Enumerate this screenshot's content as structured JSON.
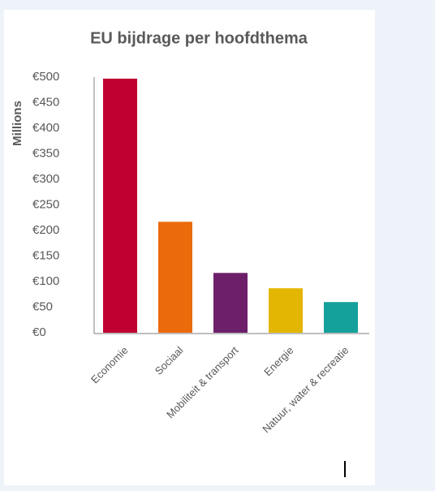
{
  "chart_data": {
    "type": "bar",
    "title": "EU bijdrage per hoofdthema",
    "y_label": "Millions",
    "categories": [
      "Economie",
      "Sociaal",
      "Mobiliteit & transport",
      "Energie",
      "Natuur, water & recreatie"
    ],
    "values": [
      497,
      217,
      117,
      87,
      60
    ],
    "colors": [
      "#c00031",
      "#ea6a0c",
      "#6e1f6a",
      "#e2b602",
      "#15a19b"
    ],
    "ylim": [
      0,
      500
    ],
    "yticks": [
      {
        "value": 0,
        "label": "€0"
      },
      {
        "value": 50,
        "label": "€50"
      },
      {
        "value": 100,
        "label": "€100"
      },
      {
        "value": 150,
        "label": "€150"
      },
      {
        "value": 200,
        "label": "€200"
      },
      {
        "value": 250,
        "label": "€250"
      },
      {
        "value": 300,
        "label": "€300"
      },
      {
        "value": 350,
        "label": "€350"
      },
      {
        "value": 400,
        "label": "€400"
      },
      {
        "value": 450,
        "label": "€450"
      },
      {
        "value": 500,
        "label": "€500"
      }
    ],
    "grid": false
  }
}
